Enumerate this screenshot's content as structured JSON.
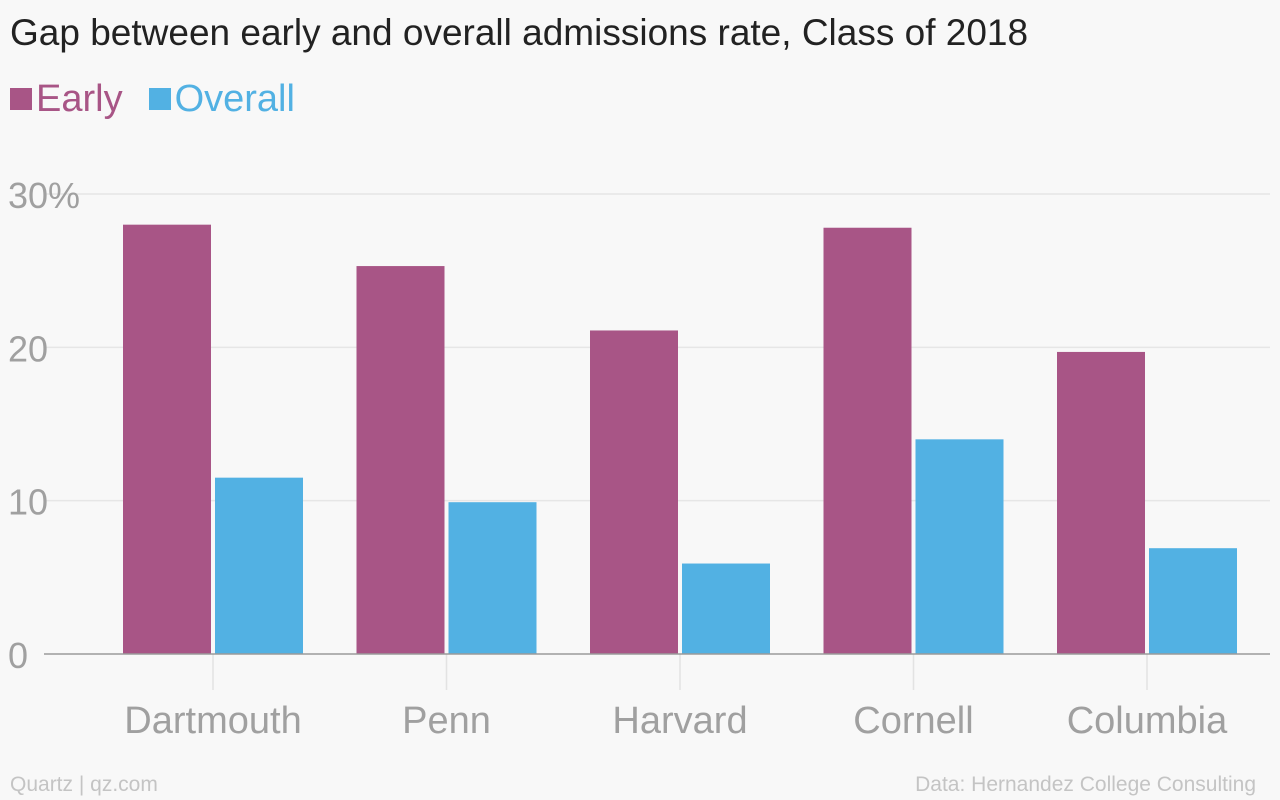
{
  "chart_data": {
    "type": "bar",
    "title": "Gap between early and overall admissions rate, Class of 2018",
    "categories": [
      "Dartmouth",
      "Penn",
      "Harvard",
      "Cornell",
      "Columbia"
    ],
    "series": [
      {
        "name": "Early",
        "color": "#a85586",
        "values": [
          28.0,
          25.3,
          21.1,
          27.8,
          19.7
        ]
      },
      {
        "name": "Overall",
        "color": "#52b1e3",
        "values": [
          11.5,
          9.9,
          5.9,
          14.0,
          6.9
        ]
      }
    ],
    "y_ticks": [
      {
        "value": 0,
        "label": "0"
      },
      {
        "value": 10,
        "label": "10"
      },
      {
        "value": 20,
        "label": "20"
      },
      {
        "value": 30,
        "label": "30%"
      }
    ],
    "ylim": [
      0,
      30
    ],
    "xlabel": "",
    "ylabel": "",
    "grid": true,
    "legend_position": "top-left"
  },
  "footer": {
    "source_left": "Quartz | qz.com",
    "source_right": "Data: Hernandez College Consulting"
  }
}
